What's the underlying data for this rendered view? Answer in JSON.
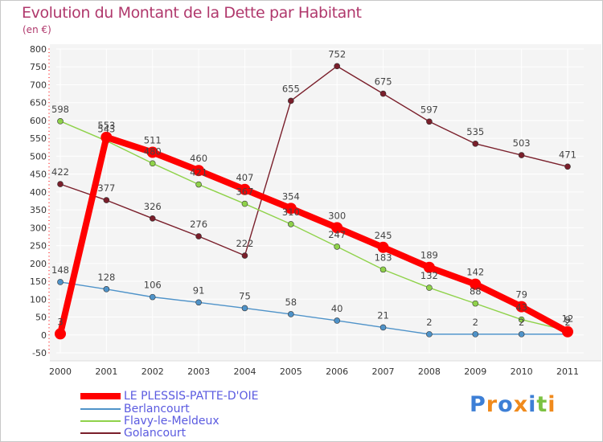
{
  "chart_data": {
    "type": "line",
    "title": "Evolution du Montant de la Dette par Habitant",
    "subtitle": "(en €)",
    "xlabel": "",
    "ylabel": "",
    "ylim": [
      -50,
      800
    ],
    "yticks": [
      -50,
      0,
      50,
      100,
      150,
      200,
      250,
      300,
      350,
      400,
      450,
      500,
      550,
      600,
      650,
      700,
      750,
      800
    ],
    "categories": [
      "2000",
      "2001",
      "2002",
      "2003",
      "2004",
      "2005",
      "2006",
      "2007",
      "2008",
      "2009",
      "2010",
      "2011"
    ],
    "grid": true,
    "legend_position": "bottom-left",
    "series": [
      {
        "name": "Golancourt",
        "color": "#7a1f2b",
        "values": [
          422,
          377,
          326,
          276,
          222,
          655,
          752,
          675,
          597,
          535,
          503,
          471
        ],
        "labels": [
          "422",
          "377",
          "326",
          "276",
          "222",
          "655",
          "752",
          "675",
          "597",
          "535",
          "503",
          "471"
        ]
      },
      {
        "name": "Berlancourt",
        "color": "#4f93c9",
        "values": [
          148,
          128,
          106,
          91,
          75,
          58,
          40,
          21,
          2,
          2,
          2,
          2
        ],
        "labels": [
          "148",
          "128",
          "106",
          "91",
          "75",
          "58",
          "40",
          "21",
          "2",
          "2",
          "2",
          "2"
        ]
      },
      {
        "name": "Flavy-le-Meldeux",
        "color": "#8fd24a",
        "values": [
          598,
          543,
          480,
          421,
          367,
          310,
          247,
          183,
          132,
          88,
          43,
          12
        ],
        "labels": [
          "598",
          "543",
          "480",
          "421",
          "367",
          "310",
          "247",
          "183",
          "132",
          "88",
          "43",
          "12"
        ]
      },
      {
        "name": "LE PLESSIS-PATTE-D'OIE",
        "color": "#ff0000",
        "values": [
          3,
          553,
          511,
          460,
          407,
          354,
          300,
          245,
          189,
          142,
          79,
          9
        ],
        "labels": [
          "3",
          "553",
          "511",
          "460",
          "407",
          "354",
          "300",
          "245",
          "189",
          "142",
          "79",
          "9"
        ]
      }
    ],
    "legend": [
      {
        "name": "LE PLESSIS-PATTE-D'OIE",
        "color": "#ff0000"
      },
      {
        "name": "Berlancourt",
        "color": "#4f93c9"
      },
      {
        "name": "Flavy-le-Meldeux",
        "color": "#8fd24a"
      },
      {
        "name": "Golancourt",
        "color": "#7a1f2b"
      }
    ]
  },
  "logo": {
    "letters": [
      "P",
      "r",
      "o",
      "x",
      "i",
      "t",
      "i"
    ],
    "colors": [
      "#3d7fd6",
      "#f08a1c",
      "#3d7fd6",
      "#f08a1c",
      "#3d7fd6",
      "#7cc242",
      "#f08a1c"
    ]
  }
}
